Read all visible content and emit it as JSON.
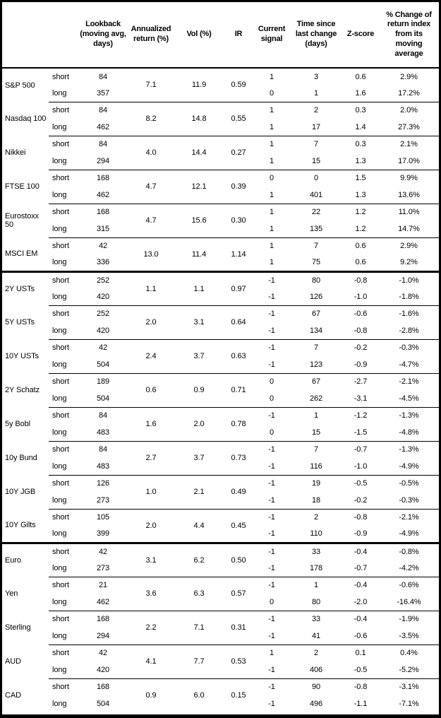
{
  "table": {
    "headers": {
      "asset": "",
      "horizon": "",
      "lookback": "Lookback (moving avg, days)",
      "annualized_return": "Annualized return (%)",
      "vol": "Vol (%)",
      "ir": "IR",
      "current_signal": "Current signal",
      "time_since": "Time since last change (days)",
      "z_score": "Z-score",
      "pct_change": "% Change of return index from its moving average"
    },
    "groups": [
      {
        "name": "S&P 500",
        "section_start": false,
        "annualized_return": "7.1",
        "vol": "11.9",
        "ir": "0.59",
        "rows": [
          {
            "horizon": "short",
            "lookback": "84",
            "signal": "1",
            "time_since": "3",
            "z_score": "0.6",
            "pct_change": "2.9%"
          },
          {
            "horizon": "long",
            "lookback": "357",
            "signal": "0",
            "time_since": "1",
            "z_score": "1.6",
            "pct_change": "17.2%"
          }
        ]
      },
      {
        "name": "Nasdaq 100",
        "section_start": false,
        "annualized_return": "8.2",
        "vol": "14.8",
        "ir": "0.55",
        "rows": [
          {
            "horizon": "short",
            "lookback": "84",
            "signal": "1",
            "time_since": "2",
            "z_score": "0.3",
            "pct_change": "2.0%"
          },
          {
            "horizon": "long",
            "lookback": "462",
            "signal": "1",
            "time_since": "17",
            "z_score": "1.4",
            "pct_change": "27.3%"
          }
        ]
      },
      {
        "name": "Nikkei",
        "section_start": false,
        "annualized_return": "4.0",
        "vol": "14.4",
        "ir": "0.27",
        "rows": [
          {
            "horizon": "short",
            "lookback": "84",
            "signal": "1",
            "time_since": "7",
            "z_score": "0.3",
            "pct_change": "2.1%"
          },
          {
            "horizon": "long",
            "lookback": "294",
            "signal": "1",
            "time_since": "15",
            "z_score": "1.3",
            "pct_change": "17.0%"
          }
        ]
      },
      {
        "name": "FTSE 100",
        "section_start": false,
        "annualized_return": "4.7",
        "vol": "12.1",
        "ir": "0.39",
        "rows": [
          {
            "horizon": "short",
            "lookback": "168",
            "signal": "0",
            "time_since": "0",
            "z_score": "1.5",
            "pct_change": "9.9%"
          },
          {
            "horizon": "long",
            "lookback": "462",
            "signal": "1",
            "time_since": "401",
            "z_score": "1.3",
            "pct_change": "13.6%"
          }
        ]
      },
      {
        "name": "Eurostoxx 50",
        "section_start": false,
        "annualized_return": "4.7",
        "vol": "15.6",
        "ir": "0.30",
        "rows": [
          {
            "horizon": "short",
            "lookback": "168",
            "signal": "1",
            "time_since": "22",
            "z_score": "1.2",
            "pct_change": "11.0%"
          },
          {
            "horizon": "long",
            "lookback": "315",
            "signal": "1",
            "time_since": "135",
            "z_score": "1.2",
            "pct_change": "14.7%"
          }
        ]
      },
      {
        "name": "MSCI EM",
        "section_start": false,
        "annualized_return": "13.0",
        "vol": "11.4",
        "ir": "1.14",
        "rows": [
          {
            "horizon": "short",
            "lookback": "42",
            "signal": "1",
            "time_since": "7",
            "z_score": "0.6",
            "pct_change": "2.9%"
          },
          {
            "horizon": "long",
            "lookback": "336",
            "signal": "1",
            "time_since": "75",
            "z_score": "0.6",
            "pct_change": "9.2%"
          }
        ]
      },
      {
        "name": "2Y USTs",
        "section_start": true,
        "annualized_return": "1.1",
        "vol": "1.1",
        "ir": "0.97",
        "rows": [
          {
            "horizon": "short",
            "lookback": "252",
            "signal": "-1",
            "time_since": "80",
            "z_score": "-0.8",
            "pct_change": "-1.0%"
          },
          {
            "horizon": "long",
            "lookback": "420",
            "signal": "-1",
            "time_since": "126",
            "z_score": "-1.0",
            "pct_change": "-1.8%"
          }
        ]
      },
      {
        "name": "5Y USTs",
        "section_start": false,
        "annualized_return": "2.0",
        "vol": "3.1",
        "ir": "0.64",
        "rows": [
          {
            "horizon": "short",
            "lookback": "252",
            "signal": "-1",
            "time_since": "67",
            "z_score": "-0.6",
            "pct_change": "-1.6%"
          },
          {
            "horizon": "long",
            "lookback": "420",
            "signal": "-1",
            "time_since": "134",
            "z_score": "-0.8",
            "pct_change": "-2.8%"
          }
        ]
      },
      {
        "name": "10Y USTs",
        "section_start": false,
        "annualized_return": "2.4",
        "vol": "3.7",
        "ir": "0.63",
        "rows": [
          {
            "horizon": "short",
            "lookback": "42",
            "signal": "-1",
            "time_since": "7",
            "z_score": "-0.2",
            "pct_change": "-0.3%"
          },
          {
            "horizon": "long",
            "lookback": "504",
            "signal": "-1",
            "time_since": "123",
            "z_score": "-0.9",
            "pct_change": "-4.7%"
          }
        ]
      },
      {
        "name": "2Y Schatz",
        "section_start": false,
        "annualized_return": "0.6",
        "vol": "0.9",
        "ir": "0.71",
        "rows": [
          {
            "horizon": "short",
            "lookback": "189",
            "signal": "0",
            "time_since": "67",
            "z_score": "-2.7",
            "pct_change": "-2.1%"
          },
          {
            "horizon": "long",
            "lookback": "504",
            "signal": "0",
            "time_since": "262",
            "z_score": "-3.1",
            "pct_change": "-4.5%"
          }
        ]
      },
      {
        "name": "5y Bobl",
        "section_start": false,
        "annualized_return": "1.6",
        "vol": "2.0",
        "ir": "0.78",
        "rows": [
          {
            "horizon": "short",
            "lookback": "84",
            "signal": "-1",
            "time_since": "1",
            "z_score": "-1.2",
            "pct_change": "-1.3%"
          },
          {
            "horizon": "long",
            "lookback": "483",
            "signal": "0",
            "time_since": "15",
            "z_score": "-1.5",
            "pct_change": "-4.8%"
          }
        ]
      },
      {
        "name": "10y Bund",
        "section_start": false,
        "annualized_return": "2.7",
        "vol": "3.7",
        "ir": "0.73",
        "rows": [
          {
            "horizon": "short",
            "lookback": "84",
            "signal": "-1",
            "time_since": "7",
            "z_score": "-0.7",
            "pct_change": "-1.3%"
          },
          {
            "horizon": "long",
            "lookback": "483",
            "signal": "-1",
            "time_since": "116",
            "z_score": "-1.0",
            "pct_change": "-4.9%"
          }
        ]
      },
      {
        "name": "10Y JGB",
        "section_start": false,
        "annualized_return": "1.0",
        "vol": "2.1",
        "ir": "0.49",
        "rows": [
          {
            "horizon": "short",
            "lookback": "126",
            "signal": "-1",
            "time_since": "19",
            "z_score": "-0.5",
            "pct_change": "-0.5%"
          },
          {
            "horizon": "long",
            "lookback": "273",
            "signal": "-1",
            "time_since": "18",
            "z_score": "-0.2",
            "pct_change": "-0.3%"
          }
        ]
      },
      {
        "name": "10Y Gilts",
        "section_start": false,
        "annualized_return": "2.0",
        "vol": "4.4",
        "ir": "0.45",
        "rows": [
          {
            "horizon": "short",
            "lookback": "105",
            "signal": "-1",
            "time_since": "2",
            "z_score": "-0.8",
            "pct_change": "-2.1%"
          },
          {
            "horizon": "long",
            "lookback": "399",
            "signal": "-1",
            "time_since": "110",
            "z_score": "-0.9",
            "pct_change": "-4.9%"
          }
        ]
      },
      {
        "name": "Euro",
        "section_start": true,
        "annualized_return": "3.1",
        "vol": "6.2",
        "ir": "0.50",
        "rows": [
          {
            "horizon": "short",
            "lookback": "42",
            "signal": "-1",
            "time_since": "33",
            "z_score": "-0.4",
            "pct_change": "-0.8%"
          },
          {
            "horizon": "long",
            "lookback": "273",
            "signal": "-1",
            "time_since": "178",
            "z_score": "-0.7",
            "pct_change": "-4.2%"
          }
        ]
      },
      {
        "name": "Yen",
        "section_start": false,
        "annualized_return": "3.6",
        "vol": "6.3",
        "ir": "0.57",
        "rows": [
          {
            "horizon": "short",
            "lookback": "21",
            "signal": "-1",
            "time_since": "1",
            "z_score": "-0.4",
            "pct_change": "-0.6%"
          },
          {
            "horizon": "long",
            "lookback": "462",
            "signal": "0",
            "time_since": "80",
            "z_score": "-2.0",
            "pct_change": "-16.4%"
          }
        ]
      },
      {
        "name": "Sterling",
        "section_start": false,
        "annualized_return": "2.2",
        "vol": "7.1",
        "ir": "0.31",
        "rows": [
          {
            "horizon": "short",
            "lookback": "168",
            "signal": "-1",
            "time_since": "33",
            "z_score": "-0.4",
            "pct_change": "-1.9%"
          },
          {
            "horizon": "long",
            "lookback": "294",
            "signal": "-1",
            "time_since": "41",
            "z_score": "-0.6",
            "pct_change": "-3.5%"
          }
        ]
      },
      {
        "name": "AUD",
        "section_start": false,
        "annualized_return": "4.1",
        "vol": "7.7",
        "ir": "0.53",
        "rows": [
          {
            "horizon": "short",
            "lookback": "42",
            "signal": "1",
            "time_since": "2",
            "z_score": "0.1",
            "pct_change": "0.4%"
          },
          {
            "horizon": "long",
            "lookback": "420",
            "signal": "-1",
            "time_since": "406",
            "z_score": "-0.5",
            "pct_change": "-5.2%"
          }
        ]
      },
      {
        "name": "CAD",
        "section_start": false,
        "annualized_return": "0.9",
        "vol": "6.0",
        "ir": "0.15",
        "rows": [
          {
            "horizon": "short",
            "lookback": "168",
            "signal": "-1",
            "time_since": "90",
            "z_score": "-0.8",
            "pct_change": "-3.1%"
          },
          {
            "horizon": "long",
            "lookback": "504",
            "signal": "-1",
            "time_since": "496",
            "z_score": "-1.1",
            "pct_change": "-7.1%"
          }
        ]
      }
    ]
  }
}
